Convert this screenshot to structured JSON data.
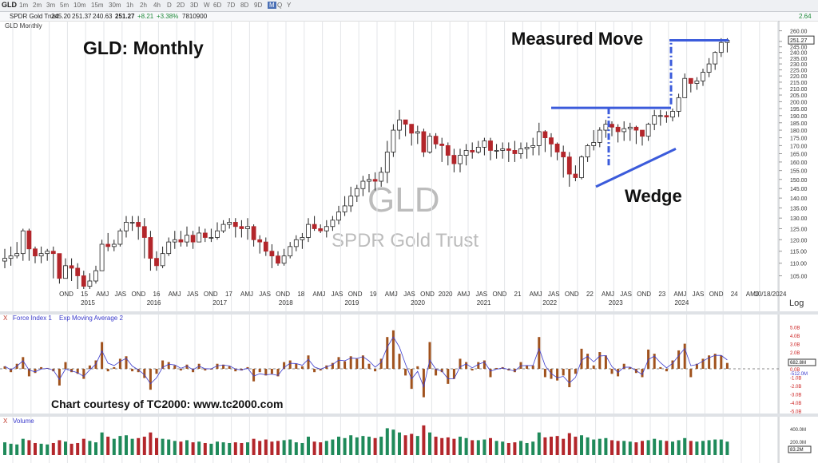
{
  "toolbar": {
    "symbol": "GLD",
    "timeframes": [
      "1m",
      "2m",
      "3m",
      "5m",
      "10m",
      "15m",
      "30m",
      "1h",
      "2h",
      "4h",
      "D",
      "2D",
      "3D",
      "W",
      "6D",
      "7D",
      "8D",
      "9D",
      "M",
      "Q",
      "Y"
    ],
    "active_timeframe": "M"
  },
  "quote": {
    "name": "SPDR Gold Trust",
    "open": "245.20",
    "high": "251.37",
    "low": "240.63",
    "close": "251.27",
    "change": "+8.21",
    "change_pct": "+3.38%",
    "volume": "7810900",
    "right_val": "2.64"
  },
  "panel_title": "GLD Monthly",
  "annotations": {
    "title": "GLD:  Monthly",
    "measured_move": "Measured Move",
    "wedge": "Wedge",
    "courtesy": "Chart courtesy of TC2000:  www.tc2000.com",
    "watermark_symbol": "GLD",
    "watermark_name": "SPDR Gold Trust"
  },
  "colors": {
    "up": "#ffffff",
    "down": "#b3262b",
    "wick": "#222222",
    "annotation_line": "#3b5bdb",
    "force_bar": "#a0521d",
    "force_ema": "#3b3bcc",
    "volume_up": "#1f8a5a",
    "volume_down": "#b3262b"
  },
  "price_axis": {
    "ticks": [
      "260.00",
      "250.00",
      "245.00",
      "240.00",
      "235.00",
      "230.00",
      "225.00",
      "220.00",
      "215.00",
      "210.00",
      "205.00",
      "200.00",
      "195.00",
      "190.00",
      "185.00",
      "180.00",
      "175.00",
      "170.00",
      "165.00",
      "160.00",
      "155.00",
      "150.00",
      "145.00",
      "140.00",
      "135.00",
      "130.00",
      "125.00",
      "120.00",
      "115.00",
      "110.00",
      "105.00"
    ],
    "last_label": "251.27",
    "log_toggle": "Log"
  },
  "time_axis": {
    "labels": [
      "OND",
      "15",
      "AMJ",
      "JAS",
      "OND",
      "16",
      "AMJ",
      "JAS",
      "OND",
      "17",
      "AMJ",
      "JAS",
      "OND",
      "18",
      "AMJ",
      "JAS",
      "OND",
      "19",
      "AMJ",
      "JAS",
      "OND",
      "2020",
      "AMJ",
      "JAS",
      "OND",
      "21",
      "AMJ",
      "JAS",
      "OND",
      "22",
      "AMJ",
      "JAS",
      "OND",
      "23",
      "AMJ",
      "JAS",
      "OND",
      "24",
      "AMJ",
      "10/18/2024",
      "AMJ"
    ],
    "years": [
      "2015",
      "2016",
      "2017",
      "2018",
      "2019",
      "2020",
      "2021",
      "2022",
      "2023",
      "2024"
    ]
  },
  "force_panel": {
    "label_close": "X",
    "label": "Force Index 1",
    "label2": "Exp Moving Average 2",
    "ticks": [
      "5.0B",
      "4.0B",
      "3.0B",
      "2.0B",
      "1.0B",
      "0.0B",
      "-1.0B",
      "-2.0B",
      "-3.0B",
      "-4.0B",
      "-5.0B"
    ],
    "last_label": "682.8M",
    "ema_label": "-512.0M"
  },
  "volume_panel": {
    "label_close": "X",
    "label": "Volume",
    "ticks": [
      "400.0M",
      "200.0M"
    ],
    "last_label": "83.2M"
  },
  "chart_data": {
    "type": "candlestick",
    "title": "GLD:  Monthly",
    "scale": "log",
    "ylim": [
      100,
      262
    ],
    "period": "monthly, Oct 2014 – Oct 2024",
    "closes": [
      112,
      113,
      114,
      124,
      116,
      113,
      114,
      115,
      114,
      104,
      109,
      108,
      105,
      101,
      103,
      107,
      118,
      117,
      118,
      124,
      128,
      128,
      126,
      121,
      112,
      109,
      114,
      119,
      120,
      119,
      122,
      119,
      123,
      121,
      121,
      124,
      127,
      128,
      126,
      125,
      126,
      120,
      119,
      115,
      113,
      110,
      113,
      117,
      120,
      121,
      127,
      125,
      124,
      126,
      129,
      133,
      136,
      141,
      145,
      149,
      150,
      149,
      154,
      166,
      180,
      187,
      184,
      178,
      179,
      166,
      176,
      171,
      170,
      164,
      159,
      164,
      167,
      166,
      169,
      173,
      167,
      167,
      168,
      167,
      165,
      168,
      169,
      170,
      179,
      175,
      171,
      166,
      163,
      153,
      151,
      163,
      170,
      172,
      180,
      184,
      182,
      179,
      181,
      182,
      180,
      176,
      184,
      190,
      190,
      189,
      193,
      203,
      218,
      214,
      216,
      223,
      230,
      240,
      249,
      251
    ],
    "lows": [
      108,
      109,
      112,
      111,
      111,
      110,
      110,
      111,
      104,
      102,
      104,
      103,
      100,
      100,
      100,
      102,
      107,
      115,
      115,
      117,
      121,
      124,
      120,
      112,
      107,
      107,
      108,
      113,
      116,
      117,
      117,
      116,
      119,
      119,
      119,
      120,
      123,
      125,
      121,
      121,
      120,
      117,
      114,
      113,
      108,
      109,
      109,
      112,
      115,
      116,
      119,
      124,
      123,
      121,
      124,
      127,
      131,
      133,
      138,
      141,
      143,
      144,
      146,
      148,
      163,
      174,
      176,
      170,
      171,
      163,
      165,
      168,
      160,
      158,
      154,
      154,
      158,
      162,
      165,
      164,
      161,
      162,
      162,
      160,
      160,
      162,
      162,
      164,
      164,
      166,
      163,
      161,
      151,
      146,
      149,
      150,
      160,
      167,
      169,
      175,
      176,
      172,
      173,
      173,
      171,
      170,
      173,
      180,
      183,
      185,
      186,
      189,
      203,
      207,
      209,
      212,
      219,
      225,
      236,
      240
    ],
    "highs": [
      116,
      117,
      119,
      125,
      125,
      117,
      117,
      116,
      117,
      114,
      112,
      112,
      110,
      107,
      106,
      109,
      120,
      123,
      120,
      125,
      131,
      131,
      131,
      130,
      124,
      115,
      117,
      121,
      124,
      124,
      126,
      124,
      126,
      125,
      125,
      128,
      129,
      130,
      130,
      129,
      130,
      127,
      122,
      121,
      118,
      115,
      116,
      119,
      122,
      123,
      130,
      131,
      127,
      129,
      131,
      136,
      141,
      146,
      147,
      152,
      153,
      154,
      157,
      173,
      184,
      194,
      186,
      183,
      183,
      181,
      178,
      178,
      175,
      172,
      168,
      168,
      171,
      172,
      173,
      175,
      175,
      171,
      172,
      172,
      173,
      172,
      172,
      175,
      185,
      180,
      178,
      172,
      170,
      166,
      158,
      164,
      171,
      180,
      182,
      187,
      186,
      184,
      186,
      185,
      183,
      180,
      185,
      194,
      194,
      193,
      195,
      206,
      222,
      218,
      219,
      226,
      235,
      241,
      253,
      253
    ],
    "annotations": [
      "Measured Move",
      "Wedge"
    ],
    "force_index_approx_B": [
      0.3,
      -0.4,
      0.6,
      1.4,
      -0.9,
      -0.5,
      0.2,
      0.1,
      -0.3,
      -2.0,
      0.8,
      -0.4,
      -0.6,
      -1.2,
      0.4,
      1.0,
      3.2,
      -0.3,
      0.2,
      1.2,
      1.5,
      -0.3,
      -0.4,
      -1.1,
      -2.5,
      -0.6,
      1.0,
      0.8,
      0.4,
      -0.2,
      0.5,
      -0.4,
      0.6,
      -0.2,
      0.0,
      0.6,
      0.5,
      0.3,
      -0.3,
      -0.2,
      0.2,
      -1.5,
      -0.4,
      -0.8,
      -0.6,
      -0.9,
      0.8,
      1.0,
      0.6,
      0.3,
      1.6,
      -0.4,
      -0.2,
      0.4,
      0.7,
      1.4,
      0.9,
      1.5,
      1.2,
      1.6,
      0.6,
      -0.3,
      1.2,
      3.8,
      4.6,
      1.8,
      -0.8,
      -2.4,
      0.3,
      -3.4,
      3.2,
      -0.8,
      -0.4,
      -1.8,
      -1.2,
      1.2,
      0.8,
      -0.2,
      0.8,
      1.0,
      -1.0,
      0.1,
      0.2,
      -0.2,
      -0.4,
      0.8,
      0.4,
      0.4,
      3.8,
      -1.0,
      -1.2,
      -1.4,
      -0.8,
      -2.2,
      -0.6,
      2.4,
      1.8,
      0.4,
      2.0,
      1.6,
      -0.6,
      -0.9,
      0.6,
      0.2,
      -0.5,
      -1.0,
      2.3,
      1.8,
      0.2,
      -0.3,
      1.0,
      2.2,
      3.0,
      -1.0,
      0.6,
      1.2,
      1.6,
      1.8,
      1.6,
      0.7
    ],
    "volume_approx_M": [
      180,
      160,
      150,
      230,
      210,
      170,
      160,
      150,
      170,
      210,
      190,
      160,
      170,
      230,
      200,
      180,
      320,
      260,
      230,
      270,
      280,
      230,
      240,
      260,
      320,
      240,
      230,
      220,
      200,
      190,
      210,
      180,
      190,
      170,
      160,
      190,
      180,
      170,
      180,
      170,
      180,
      230,
      200,
      220,
      190,
      200,
      210,
      220,
      180,
      170,
      260,
      190,
      180,
      200,
      220,
      260,
      240,
      280,
      250,
      270,
      260,
      240,
      260,
      380,
      360,
      320,
      280,
      300,
      270,
      420,
      320,
      260,
      240,
      250,
      230,
      260,
      240,
      210,
      210,
      220,
      240,
      200,
      190,
      170,
      180,
      200,
      170,
      190,
      320,
      250,
      260,
      270,
      230,
      310,
      260,
      280,
      250,
      220,
      230,
      240,
      210,
      200,
      200,
      190,
      180,
      200,
      210,
      230,
      210,
      200,
      190,
      210,
      240,
      200,
      190,
      200,
      210,
      220,
      220,
      190
    ]
  }
}
